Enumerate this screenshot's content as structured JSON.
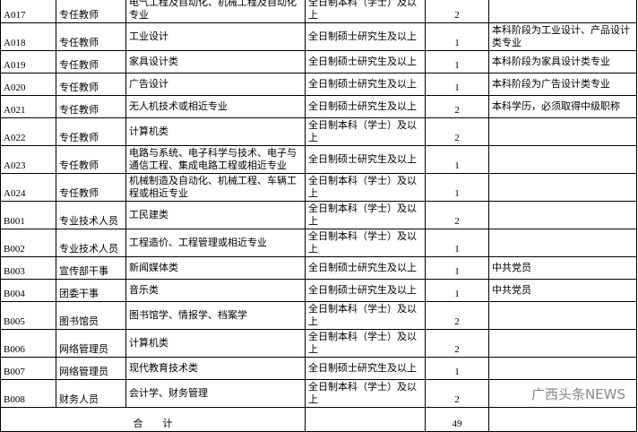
{
  "table": {
    "rows": [
      [
        "A017",
        "专任教师",
        "电气工程及自动化、机械工程及自动化专业",
        "全日制本科（学士）及以上",
        "2",
        ""
      ],
      [
        "A018",
        "专任教师",
        "工业设计",
        "全日制硕士研究生及以上",
        "1",
        "本科阶段为工业设计、产品设计类专业"
      ],
      [
        "A019",
        "专任教师",
        "家具设计类",
        "全日制硕士研究生及以上",
        "1",
        "本科阶段为家具设计类专业"
      ],
      [
        "A020",
        "专任教师",
        "广告设计",
        "全日制硕士研究生及以上",
        "1",
        "本科阶段为广告设计类专业"
      ],
      [
        "A021",
        "专任教师",
        "无人机技术或相近专业",
        "全日制硕士研究生及以上",
        "2",
        "本科学历，必须取得中级职称"
      ],
      [
        "A022",
        "专任教师",
        "计算机类",
        "全日制本科（学士）及以上",
        "2",
        ""
      ],
      [
        "A023",
        "专任教师",
        "电路与系统、电子科学与技术、电子与通信工程、集成电路工程或相近专业",
        "全日制硕士研究生及以上",
        "1",
        ""
      ],
      [
        "A024",
        "专任教师",
        "机械制造及自动化、机械工程、车辆工程或相近专业",
        "全日制本科（学士）及以上",
        "1",
        ""
      ],
      [
        "B001",
        "专业技术人员",
        "工民建类",
        "全日制本科（学士）及以上",
        "2",
        ""
      ],
      [
        "B002",
        "专业技术人员",
        "工程造价、工程管理或相近专业",
        "全日制本科（学士）及以上",
        "1",
        ""
      ],
      [
        "B003",
        "宣传部干事",
        "新闻媒体类",
        "全日制硕士研究生及以上",
        "1",
        "中共党员"
      ],
      [
        "B004",
        "团委干事",
        "音乐类",
        "全日制硕士研究生及以上",
        "1",
        "中共党员"
      ],
      [
        "B005",
        "图书馆员",
        "图书馆学、情报学、档案学",
        "全日制本科（学士）及以上",
        "2",
        ""
      ],
      [
        "B006",
        "网络管理员",
        "计算机类",
        "全日制本科（学士）及以上",
        "2",
        ""
      ],
      [
        "B007",
        "网络管理员",
        "现代教育技术类",
        "全日制硕士研究生及以上",
        "1",
        ""
      ],
      [
        "B008",
        "财务人员",
        "会计学、财务管理",
        "全日制本科（学士）及以上",
        "2",
        ""
      ]
    ],
    "total": {
      "label": "合　　计",
      "count": "49"
    }
  },
  "watermark": "广西头条NEWS"
}
